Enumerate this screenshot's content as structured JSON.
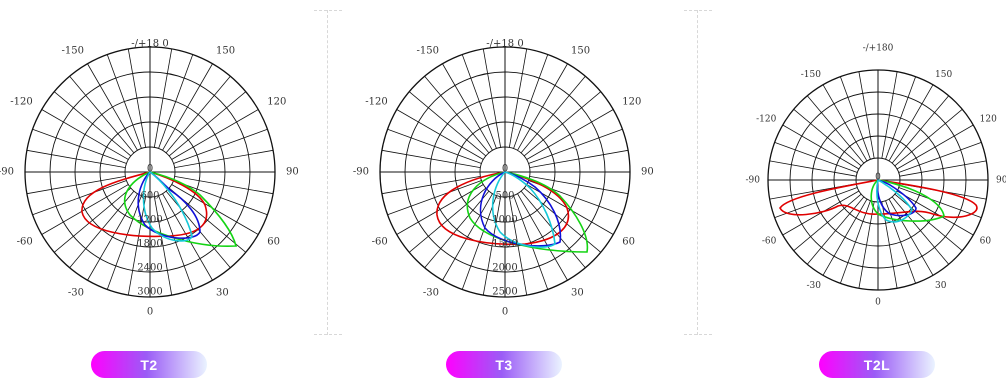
{
  "colors": {
    "grid": "#111111",
    "red": "#e00000",
    "green": "#14d414",
    "blue": "#1010d8",
    "cyan": "#15c8d8",
    "pill_start": "#ff00ff",
    "pill_end": "#eaf3ff"
  },
  "diagrams": [
    {
      "id": "t2",
      "label": "T2",
      "angle_labels": {
        "top": "-/+18 0",
        "150": "150",
        "120": "120",
        "90": "90",
        "60": "60",
        "30": "30",
        "0": "0",
        "-30": "-30",
        "-60": "-60",
        "-90": "-90",
        "-120": "-120",
        "-150": "-150"
      },
      "radial_labels": [
        "0",
        "600",
        "1200",
        "1800",
        "2400",
        "3000"
      ],
      "r_max": 3000
    },
    {
      "id": "t3",
      "label": "T3",
      "angle_labels": {
        "top": "-/+18 0",
        "150": "150",
        "120": "120",
        "90": "90",
        "60": "60",
        "30": "30",
        "0": "0",
        "-30": "-30",
        "-60": "-60",
        "-90": "-90",
        "-120": "-120",
        "-150": "-150"
      },
      "radial_labels": [
        "0",
        "500",
        "1000",
        "1500",
        "2000",
        "2500"
      ],
      "r_max": 2500
    },
    {
      "id": "t2l",
      "label": "T2L",
      "angle_labels": {
        "top": "-/+180",
        "150": "150",
        "120": "120",
        "90": "90",
        "60": "60",
        "30": "30",
        "0": "0",
        "-30": "-30",
        "-60": "-60",
        "-90": "-90",
        "-120": "-120",
        "-150": "-150"
      },
      "radial_labels": [
        "0"
      ],
      "r_max": 2500
    }
  ]
}
